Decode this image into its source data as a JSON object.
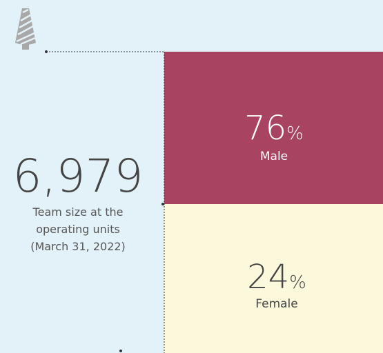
{
  "total": {
    "value": "6,979",
    "caption": [
      "Team size at the",
      "operating units",
      "(March 31, 2022)"
    ]
  },
  "segments": [
    {
      "value": 76,
      "unit": "%",
      "label": "Male"
    },
    {
      "value": 24,
      "unit": "%",
      "label": "Female"
    }
  ]
}
